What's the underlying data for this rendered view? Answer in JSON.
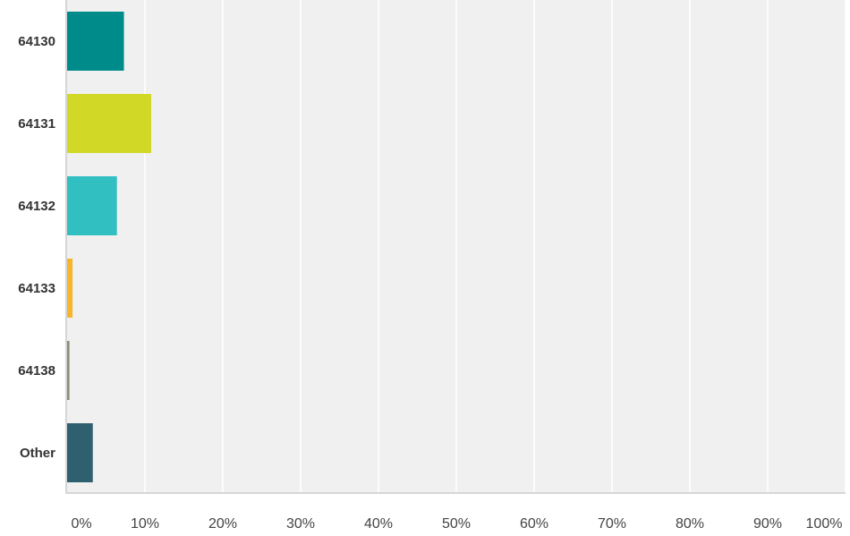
{
  "chart_data": {
    "type": "bar",
    "orientation": "horizontal",
    "categories": [
      "64130",
      "64131",
      "64132",
      "64133",
      "64138",
      "Other"
    ],
    "values": [
      7.3,
      10.8,
      6.4,
      0.7,
      0.3,
      3.3
    ],
    "colors": [
      "#008b8b",
      "#d1d826",
      "#31bfc1",
      "#f5b52d",
      "#8c8c76",
      "#2e6070"
    ],
    "xlim": [
      0,
      100
    ],
    "x_ticks": [
      "0%",
      "10%",
      "20%",
      "30%",
      "40%",
      "50%",
      "60%",
      "70%",
      "80%",
      "90%",
      "100%"
    ],
    "grid": true,
    "plot_background": "#f0f0f0",
    "grid_color": "#ffffff"
  }
}
